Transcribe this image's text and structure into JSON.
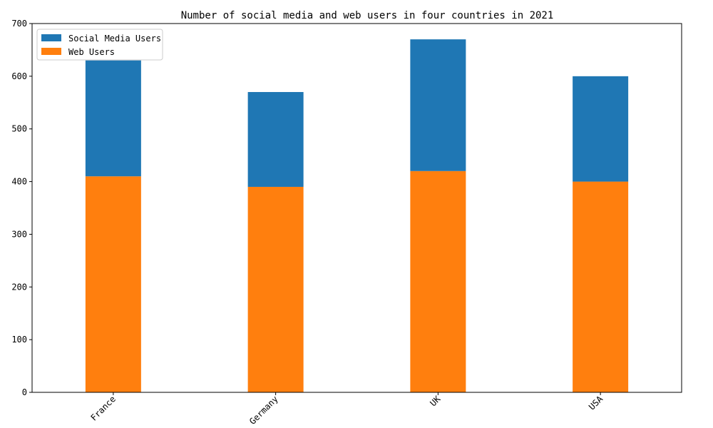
{
  "chart_data": {
    "type": "bar",
    "stacked": true,
    "title": "Number of social media and web users in four countries in 2021",
    "xlabel": "",
    "ylabel": "",
    "categories": [
      "France",
      "Germany",
      "UK",
      "USA"
    ],
    "series": [
      {
        "name": "Social Media Users",
        "values": [
          220,
          180,
          250,
          200
        ],
        "color": "#1f77b4"
      },
      {
        "name": "Web Users",
        "values": [
          410,
          390,
          420,
          400
        ],
        "color": "#ff7f0e"
      }
    ],
    "totals": [
      630,
      570,
      670,
      600
    ],
    "ylim": [
      0,
      700
    ],
    "yticks": [
      "0",
      "100",
      "200",
      "300",
      "400",
      "500",
      "600",
      "700"
    ],
    "grid": false,
    "legend_position": "top-left",
    "xtick_rotation": 45
  }
}
